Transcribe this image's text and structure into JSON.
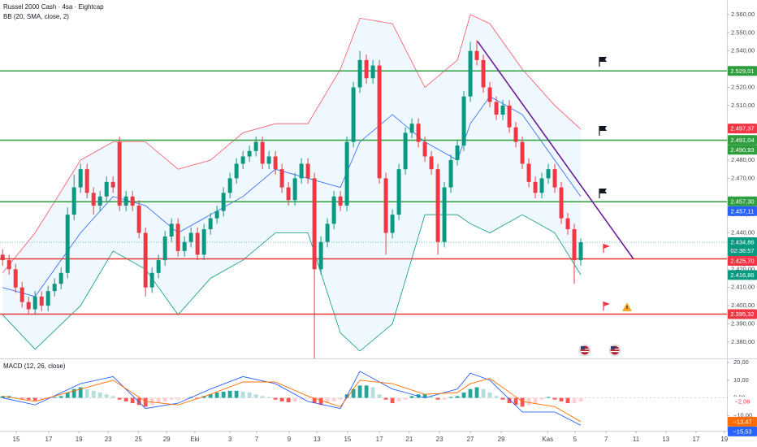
{
  "chart_data": [
    {
      "type": "candlestick",
      "title": "Russel 2000 Cash · 4sa · Eightcap",
      "indicator": "BB (20, SMA, close, 2)",
      "xlim": [
        -0.4,
        111.5
      ],
      "ylim": [
        2371,
        2568
      ],
      "up_color": "#089981",
      "down_color": "#f23645",
      "candles": [
        [
          2428,
          2431,
          2422,
          2425
        ],
        [
          2425,
          2428,
          2417,
          2420
        ],
        [
          2420,
          2423,
          2407,
          2410
        ],
        [
          2410,
          2413,
          2399,
          2402
        ],
        [
          2402,
          2405,
          2395,
          2398
        ],
        [
          2398,
          2408,
          2395,
          2405
        ],
        [
          2405,
          2408,
          2397,
          2400
        ],
        [
          2400,
          2411,
          2397,
          2408
        ],
        [
          2408,
          2415,
          2405,
          2412
        ],
        [
          2412,
          2421,
          2409,
          2418
        ],
        [
          2418,
          2454,
          2415,
          2450
        ],
        [
          2450,
          2472,
          2447,
          2465
        ],
        [
          2465,
          2478,
          2462,
          2475
        ],
        [
          2475,
          2478,
          2459,
          2462
        ],
        [
          2462,
          2465,
          2450,
          2455
        ],
        [
          2455,
          2463,
          2452,
          2460
        ],
        [
          2460,
          2471,
          2457,
          2468
        ],
        [
          2468,
          2471,
          2462,
          2465
        ],
        [
          2490,
          2493,
          2452,
          2455
        ],
        [
          2455,
          2463,
          2452,
          2460
        ],
        [
          2460,
          2463,
          2452,
          2455
        ],
        [
          2455,
          2458,
          2437,
          2440
        ],
        [
          2440,
          2443,
          2405,
          2410
        ],
        [
          2410,
          2421,
          2407,
          2418
        ],
        [
          2418,
          2428,
          2415,
          2425
        ],
        [
          2425,
          2441,
          2422,
          2438
        ],
        [
          2438,
          2448,
          2435,
          2445
        ],
        [
          2445,
          2448,
          2427,
          2430
        ],
        [
          2430,
          2438,
          2427,
          2435
        ],
        [
          2435,
          2443,
          2432,
          2440
        ],
        [
          2440,
          2443,
          2425,
          2428
        ],
        [
          2428,
          2445,
          2425,
          2442
        ],
        [
          2442,
          2451,
          2439,
          2448
        ],
        [
          2448,
          2455,
          2445,
          2452
        ],
        [
          2452,
          2465,
          2449,
          2462
        ],
        [
          2462,
          2473,
          2459,
          2470
        ],
        [
          2470,
          2481,
          2467,
          2478
        ],
        [
          2478,
          2485,
          2475,
          2482
        ],
        [
          2482,
          2488,
          2479,
          2485
        ],
        [
          2485,
          2493,
          2482,
          2490
        ],
        [
          2490,
          2493,
          2475,
          2478
        ],
        [
          2478,
          2485,
          2475,
          2482
        ],
        [
          2482,
          2485,
          2472,
          2475
        ],
        [
          2475,
          2478,
          2462,
          2465
        ],
        [
          2465,
          2468,
          2455,
          2458
        ],
        [
          2458,
          2473,
          2455,
          2470
        ],
        [
          2470,
          2481,
          2467,
          2478
        ],
        [
          2478,
          2481,
          2467,
          2470
        ],
        [
          2470,
          2473,
          2371,
          2420
        ],
        [
          2420,
          2438,
          2417,
          2435
        ],
        [
          2435,
          2448,
          2432,
          2445
        ],
        [
          2445,
          2463,
          2442,
          2460
        ],
        [
          2460,
          2463,
          2452,
          2455
        ],
        [
          2455,
          2493,
          2452,
          2490
        ],
        [
          2490,
          2523,
          2487,
          2520
        ],
        [
          2520,
          2540,
          2517,
          2535
        ],
        [
          2535,
          2538,
          2522,
          2525
        ],
        [
          2525,
          2535,
          2522,
          2532
        ],
        [
          2532,
          2535,
          2467,
          2470
        ],
        [
          2470,
          2473,
          2428,
          2440
        ],
        [
          2440,
          2453,
          2437,
          2450
        ],
        [
          2450,
          2478,
          2447,
          2475
        ],
        [
          2475,
          2498,
          2472,
          2495
        ],
        [
          2495,
          2503,
          2492,
          2500
        ],
        [
          2500,
          2503,
          2487,
          2490
        ],
        [
          2490,
          2493,
          2479,
          2482
        ],
        [
          2482,
          2485,
          2472,
          2475
        ],
        [
          2475,
          2478,
          2428,
          2435
        ],
        [
          2435,
          2468,
          2432,
          2465
        ],
        [
          2465,
          2483,
          2462,
          2480
        ],
        [
          2480,
          2491,
          2477,
          2488
        ],
        [
          2488,
          2518,
          2485,
          2515
        ],
        [
          2515,
          2545,
          2512,
          2540
        ],
        [
          2540,
          2546,
          2532,
          2535
        ],
        [
          2535,
          2538,
          2517,
          2520
        ],
        [
          2520,
          2523,
          2509,
          2512
        ],
        [
          2512,
          2515,
          2502,
          2505
        ],
        [
          2505,
          2513,
          2502,
          2510
        ],
        [
          2510,
          2513,
          2495,
          2498
        ],
        [
          2498,
          2501,
          2487,
          2490
        ],
        [
          2490,
          2493,
          2475,
          2478
        ],
        [
          2478,
          2481,
          2465,
          2468
        ],
        [
          2468,
          2471,
          2459,
          2462
        ],
        [
          2462,
          2473,
          2459,
          2470
        ],
        [
          2470,
          2478,
          2467,
          2475
        ],
        [
          2475,
          2478,
          2462,
          2465
        ],
        [
          2465,
          2468,
          2445,
          2448
        ],
        [
          2448,
          2451,
          2439,
          2442
        ],
        [
          2442,
          2445,
          2412,
          2425
        ],
        [
          2425,
          2437,
          2422,
          2434.86
        ]
      ],
      "bands": {
        "fill": "#2196f3",
        "x": [
          0,
          5,
          12,
          17,
          22,
          27,
          32,
          37,
          42,
          47,
          52,
          55,
          60,
          65,
          70,
          72,
          75,
          80,
          85,
          89
        ],
        "series": [
          {
            "color": "#f7525f",
            "values": [
              2418,
              2440,
              2480,
              2490,
              2490,
              2475,
              2480,
              2495,
              2500,
              2500,
              2530,
              2558,
              2555,
              2520,
              2535,
              2560,
              2555,
              2530,
              2510,
              2497
            ]
          },
          {
            "color": "#2962ff",
            "values": [
              2410,
              2405,
              2440,
              2460,
              2455,
              2440,
              2450,
              2460,
              2475,
              2470,
              2465,
              2490,
              2505,
              2490,
              2480,
              2500,
              2515,
              2505,
              2480,
              2460
            ]
          },
          {
            "color": "#089981",
            "values": [
              2395,
              2376,
              2400,
              2430,
              2420,
              2395,
              2415,
              2425,
              2440,
              2440,
              2385,
              2375,
              2390,
              2450,
              2450,
              2445,
              2440,
              2450,
              2440,
              2417
            ]
          }
        ]
      },
      "levels": [
        {
          "value": 2529.01,
          "color": "#2e9e3e"
        },
        {
          "value": 2490.93,
          "color": "#2e9e3e"
        },
        {
          "value": 2457.11,
          "color": "#2e9e3e"
        },
        {
          "value": 2425.7,
          "color": "#e53935"
        },
        {
          "value": 2395.32,
          "color": "#e53935"
        }
      ],
      "trendline": {
        "color": "#6a1b9a",
        "x": [
          73.1,
          97.1
        ],
        "values": [
          2545.3,
          2425.7
        ]
      },
      "yticks": [
        {
          "value": 2560,
          "label": "2.560,00"
        },
        {
          "value": 2550,
          "label": "2.550,00"
        },
        {
          "value": 2540,
          "label": "2.540,00"
        },
        {
          "value": 2520,
          "label": "2.520,00"
        },
        {
          "value": 2510,
          "label": "2.510,00"
        },
        {
          "value": 2480,
          "label": "2.480,00"
        },
        {
          "value": 2470,
          "label": "2.470,00"
        },
        {
          "value": 2450,
          "label": "2.450,00"
        },
        {
          "value": 2440,
          "label": "2.440,00"
        },
        {
          "value": 2420,
          "label": "2.420,00"
        },
        {
          "value": 2410,
          "label": "2.410,00"
        },
        {
          "value": 2400,
          "label": "2.400,00"
        },
        {
          "value": 2390,
          "label": "2.390,00"
        },
        {
          "value": 2380,
          "label": "2.380,00"
        }
      ],
      "price_labels": [
        {
          "value": 2529.01,
          "label": "2.529,01",
          "color": "#2e9e3e"
        },
        {
          "value": 2497.37,
          "label": "2.497,37",
          "color": "#f23645"
        },
        {
          "value": 2491.04,
          "label": "2.491,04",
          "color": "#2e9e3e"
        },
        {
          "value": 2490.93,
          "label": "2.490,93",
          "color": "#2e9e3e"
        },
        {
          "value": 2457.3,
          "label": "2.457,30",
          "color": "#2e9e3e"
        },
        {
          "value": 2457.11,
          "label": "2.457,11",
          "color": "#2962ff"
        },
        {
          "value": 2434.86,
          "label": "2.434,86",
          "color": "#089981",
          "countdown": "02:36:57"
        },
        {
          "value": 2425.7,
          "label": "2.425,70",
          "color": "#f23645"
        },
        {
          "value": 2416.86,
          "label": "2.416,86",
          "color": "#089981"
        },
        {
          "value": 2395.32,
          "label": "2.395,32",
          "color": "#f23645"
        }
      ]
    },
    {
      "type": "macd",
      "title": "MACD (12, 26, close)",
      "xlim": [
        -0.4,
        111.5
      ],
      "ylim": [
        -18.6,
        21.4
      ],
      "histogram_colors": [
        "#26a69a",
        "#b2dfdb",
        "#ff5252",
        "#ffcdd2"
      ],
      "histogram": [
        1,
        1,
        0.5,
        -0.5,
        -1,
        -1.5,
        -1,
        -0.5,
        0.5,
        1,
        3,
        5,
        6,
        5,
        4,
        3,
        2,
        1,
        -1,
        -2,
        -3,
        -4,
        -5,
        -4,
        -3,
        -2,
        -1,
        -1,
        -0.5,
        0.5,
        -0.5,
        1,
        2,
        3,
        3.5,
        4,
        4,
        3.5,
        3,
        2,
        1,
        0.5,
        -1,
        -2,
        -2.5,
        -2,
        -1,
        -0.5,
        -3,
        -4,
        -3,
        -2,
        -1,
        2,
        5,
        7,
        7,
        6,
        2,
        -1,
        -3,
        -2,
        -1,
        1,
        2,
        2,
        1,
        -1,
        -1,
        0.5,
        1,
        3,
        5,
        6,
        5,
        3,
        1,
        -1,
        -3,
        -4,
        -5,
        -4,
        -3,
        -1,
        0.5,
        -1,
        -2,
        -3,
        -3,
        -2.06
      ],
      "lines": {
        "x": [
          0,
          5,
          12,
          17,
          22,
          27,
          32,
          37,
          42,
          47,
          52,
          55,
          60,
          65,
          70,
          72,
          75,
          80,
          85,
          89
        ],
        "series": [
          {
            "color": "#2962ff",
            "values": [
              0,
              -4,
              8,
              12,
              -6,
              -3,
              5,
              12,
              8,
              -2,
              -6,
              15,
              5,
              0,
              5,
              14,
              10,
              -8,
              -8,
              -15.53
            ]
          },
          {
            "color": "#ff6d00",
            "values": [
              1,
              -2,
              5,
              10,
              -2,
              -4,
              2,
              9,
              9,
              1,
              -5,
              10,
              8,
              2,
              3,
              8,
              11,
              -2,
              -5,
              -13.47
            ]
          }
        ]
      },
      "yticks": [
        {
          "value": 20,
          "label": "20,00"
        },
        {
          "value": 10,
          "label": "10,00"
        },
        {
          "value": 0,
          "label": "0,00"
        },
        {
          "value": -10,
          "label": "−10,00"
        }
      ],
      "value_boxes": [
        {
          "value": -2.06,
          "label": "−2,06",
          "color": "#ffffff",
          "text_color": "#f23645"
        },
        {
          "value": -13.47,
          "label": "−13,47",
          "color": "#ff6d00"
        },
        {
          "value": -15.53,
          "label": "−15,53",
          "color": "#2962ff"
        }
      ],
      "xticks": [
        {
          "value": 2.1,
          "label": "15"
        },
        {
          "value": 7.1,
          "label": "17"
        },
        {
          "value": 11.75,
          "label": "19"
        },
        {
          "value": 16.25,
          "label": "23"
        },
        {
          "value": 20.9,
          "label": "25"
        },
        {
          "value": 25.25,
          "label": "29"
        },
        {
          "value": 29.6,
          "label": "Eki"
        },
        {
          "value": 35,
          "label": "3"
        },
        {
          "value": 39.1,
          "label": "7"
        },
        {
          "value": 44.1,
          "label": "9"
        },
        {
          "value": 48.4,
          "label": "13"
        },
        {
          "value": 53.1,
          "label": "15"
        },
        {
          "value": 58,
          "label": "17"
        },
        {
          "value": 62.6,
          "label": "21"
        },
        {
          "value": 67.25,
          "label": "23"
        },
        {
          "value": 72,
          "label": "27"
        },
        {
          "value": 76.75,
          "label": "29"
        },
        {
          "value": 83.9,
          "label": "Kas"
        },
        {
          "value": 88.1,
          "label": "5"
        },
        {
          "value": 92.9,
          "label": "7"
        },
        {
          "value": 97.5,
          "label": "11"
        },
        {
          "value": 102.1,
          "label": "13"
        },
        {
          "value": 106.75,
          "label": "17"
        },
        {
          "value": 111.1,
          "label": "19"
        }
      ]
    }
  ]
}
